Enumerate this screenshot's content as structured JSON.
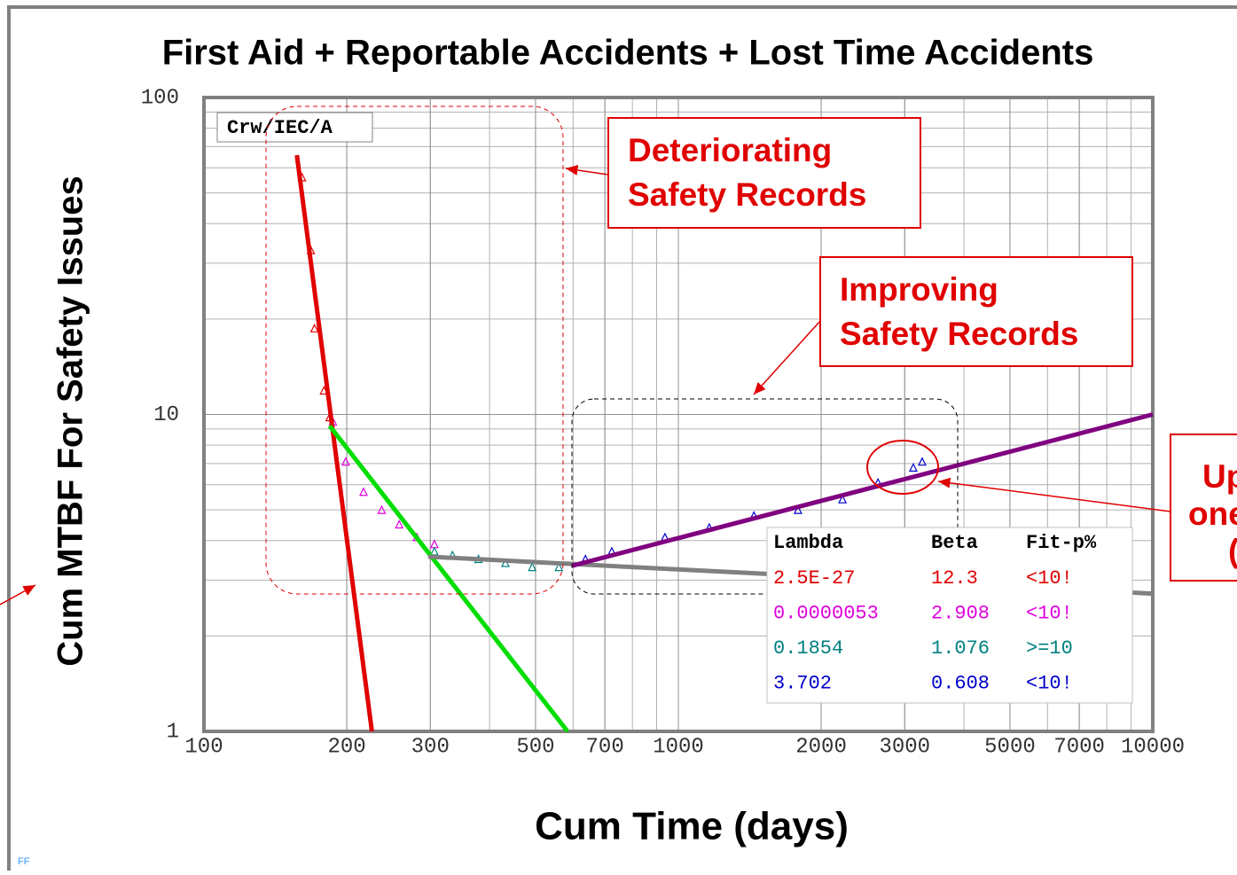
{
  "chart_data": {
    "type": "line",
    "title": "First Aid + Reportable Accidents + Lost Time Accidents",
    "x_label": "Cum Time (days)",
    "y_label": "Cum MTBF For Safety Issues",
    "method_label": "Crw/IEC/A",
    "annotations": [
      "Deteriorating",
      "Safety Records",
      "Improving",
      "Safety Records",
      "Up",
      "one",
      "(",
      "FF"
    ],
    "fit_table": {
      "header": [
        "Lambda",
        "Beta",
        "Fit-p%"
      ],
      "rows": [
        [
          "2.5E-27",
          "12.3",
          "<10!"
        ],
        [
          "0.0000053",
          "2.908",
          "<10!"
        ],
        [
          "0.1854",
          "1.076",
          ">=10"
        ],
        [
          "3.702",
          "0.608",
          "<10!"
        ]
      ],
      "colors": [
        "#e00000",
        "#e000e0",
        "#008080",
        "#0000cc"
      ]
    },
    "x_log": true,
    "y_log": true,
    "grid": true,
    "minor_grid": true,
    "xlim": [
      100,
      10000
    ],
    "ylim": [
      1,
      100
    ],
    "xticks": [
      100,
      200,
      300,
      500,
      700,
      1000,
      2000,
      3000,
      5000,
      7000,
      10000
    ],
    "yticks": [
      1,
      10,
      100
    ],
    "series": [
      {
        "mode": "markers",
        "color": "#e00000",
        "x": [
          161,
          168,
          171,
          179,
          184
        ],
        "values": [
          56,
          33,
          18.7,
          11.9,
          9.8
        ]
      },
      {
        "mode": "markers",
        "color": "#e000e0",
        "x": [
          187,
          199,
          217,
          237,
          258,
          281,
          306
        ],
        "values": [
          9.5,
          7.1,
          5.7,
          5.0,
          4.5,
          4.1,
          3.9
        ]
      },
      {
        "mode": "markers",
        "color": "#008080",
        "x": [
          306,
          334,
          379,
          432,
          492,
          560
        ],
        "values": [
          3.7,
          3.6,
          3.5,
          3.4,
          3.3,
          3.3
        ]
      },
      {
        "mode": "markers",
        "color": "#0000cc",
        "x": [
          637,
          724,
          937,
          1162,
          1443,
          1787,
          2218,
          2635,
          3128,
          3266
        ],
        "values": [
          3.5,
          3.7,
          4.1,
          4.4,
          4.8,
          5.0,
          5.4,
          6.1,
          6.8,
          7.1
        ]
      },
      {
        "mode": "lines",
        "color": "#e00000",
        "x": [
          157,
          226
        ],
        "values": [
          65.8,
          1
        ]
      },
      {
        "mode": "lines",
        "color": "#00dd00",
        "x": [
          184,
          584
        ],
        "values": [
          9.2,
          1
        ]
      },
      {
        "mode": "lines",
        "color": "#808080",
        "x": [
          297,
          10000
        ],
        "values": [
          3.56,
          2.72
        ]
      },
      {
        "mode": "lines",
        "color": "#800080",
        "x": [
          597,
          10000
        ],
        "values": [
          3.33,
          10
        ]
      }
    ]
  }
}
